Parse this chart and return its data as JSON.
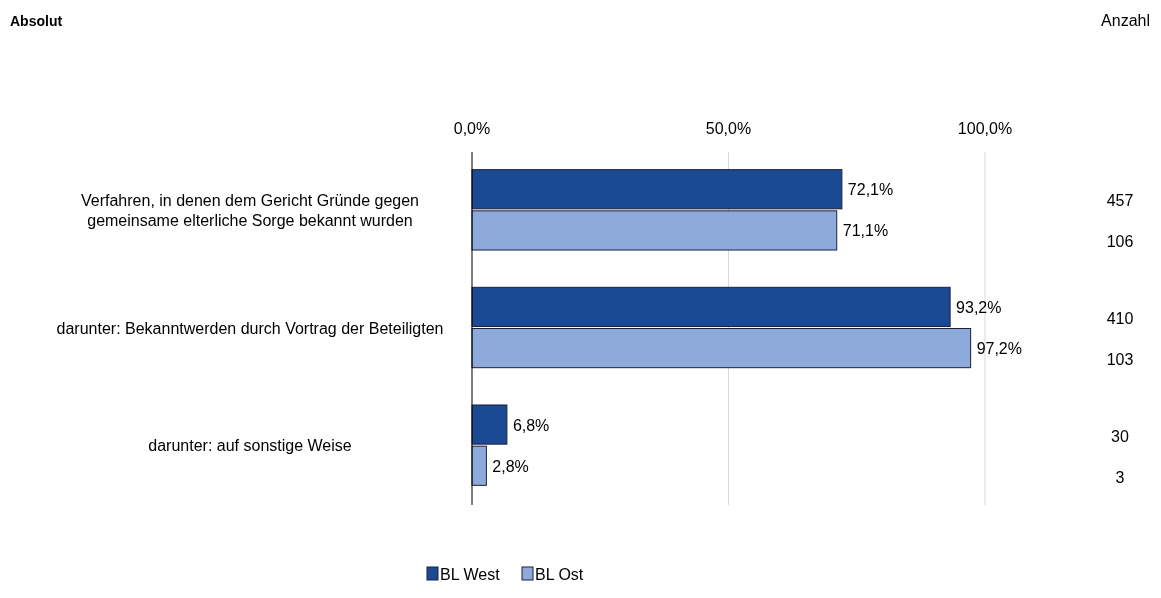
{
  "chart_data": {
    "type": "bar",
    "orientation": "horizontal",
    "title": "Absolut",
    "categories": [
      "Verfahren, in denen dem Gericht Gründe gegen gemeinsame elterliche Sorge bekannt wurden",
      "darunter: Bekanntwerden durch Vortrag der Beteiligten",
      "darunter: auf sonstige Weise"
    ],
    "series": [
      {
        "name": "BL West",
        "color": "#1a4a94",
        "values": [
          72.1,
          93.2,
          6.8
        ],
        "value_labels": [
          "72,1%",
          "93,2%",
          "6,8%"
        ]
      },
      {
        "name": "BL Ost",
        "color": "#8eaadb",
        "values": [
          71.1,
          97.2,
          2.8
        ],
        "value_labels": [
          "71,1%",
          "97,2%",
          "2,8%"
        ]
      }
    ],
    "xlim": [
      0,
      100
    ],
    "xticks": [
      {
        "value": 0,
        "label": "0,0%"
      },
      {
        "value": 50,
        "label": "50,0%"
      },
      {
        "value": 100,
        "label": "100,0%"
      }
    ],
    "grid": "x",
    "legend": "bottom",
    "annotations": [
      "Anzahl",
      "457",
      "106",
      "410",
      "103",
      "30",
      "3"
    ]
  }
}
